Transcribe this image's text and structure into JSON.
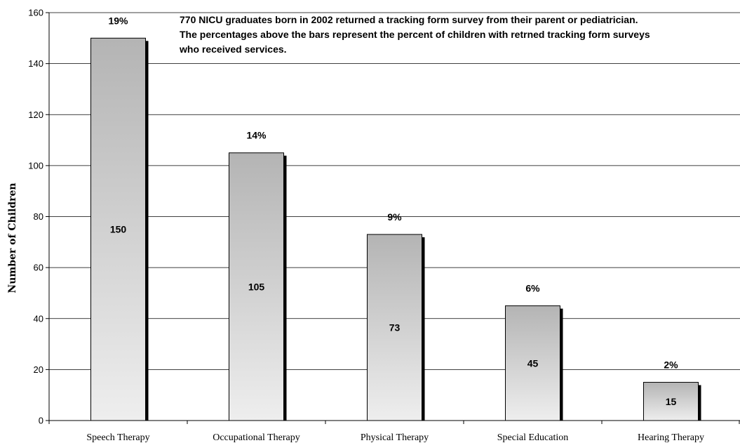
{
  "chart_data": {
    "type": "bar",
    "categories": [
      "Speech Therapy",
      "Occupational Therapy",
      "Physical Therapy",
      "Special Education",
      "Hearing Therapy"
    ],
    "values": [
      150,
      105,
      73,
      45,
      15
    ],
    "value_labels": [
      "150",
      "105",
      "73",
      "45",
      "15"
    ],
    "percent_labels": [
      "19%",
      "14%",
      "9%",
      "6%",
      "2%"
    ],
    "ylabel": "Number of Children",
    "xlabel": "",
    "ylim": [
      0,
      160
    ],
    "yticks": [
      0,
      20,
      40,
      60,
      80,
      100,
      120,
      140,
      160
    ],
    "grid": true,
    "note_lines": [
      "770 NICU graduates born in 2002 returned a tracking form survey from their parent or pediatrician.",
      "The percentages above the bars represent the percent of children with retrned tracking form surveys",
      "who  received services."
    ],
    "colors": {
      "bar_top": "#b4b4b4",
      "bar_bottom": "#eeeeee",
      "bar_shadow": "#000000",
      "gridline": "#000000"
    }
  }
}
